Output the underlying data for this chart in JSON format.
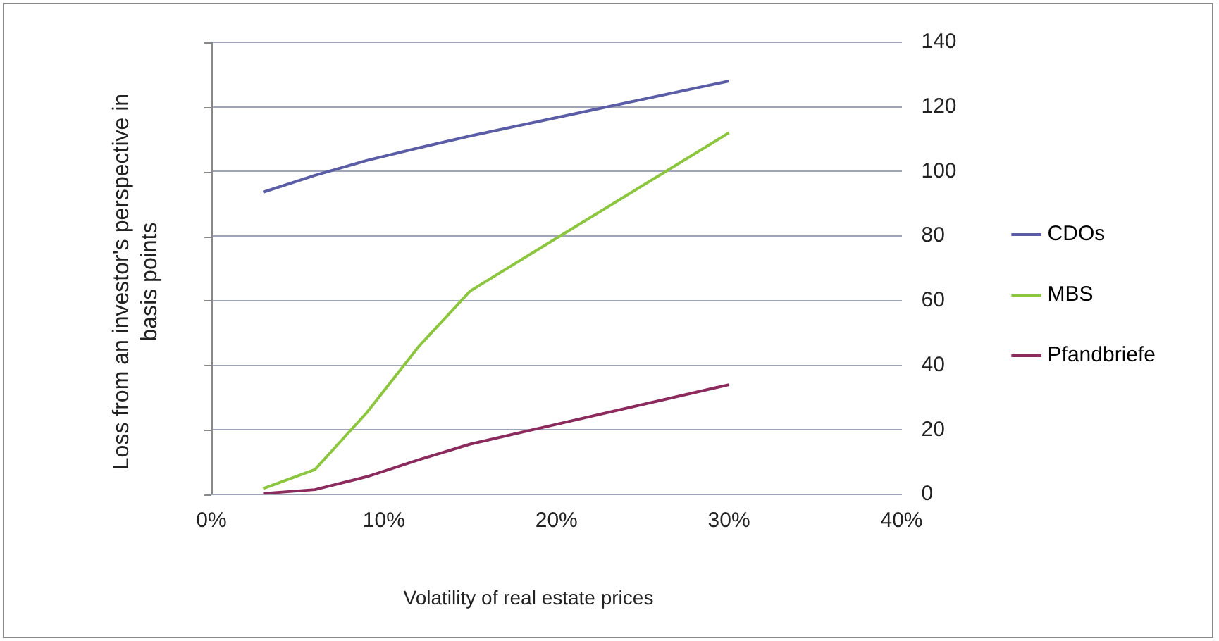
{
  "chart_data": {
    "type": "line",
    "xlabel": "Volatility of real estate prices",
    "ylabel": "Loss from an investor's perspective in basis points",
    "x": [
      3,
      6,
      9,
      12,
      15,
      30
    ],
    "series": [
      {
        "name": "CDOs",
        "color": "#5a5da6",
        "values": [
          93.6,
          98.8,
          103.4,
          107.3,
          111,
          128
        ]
      },
      {
        "name": "MBS",
        "color": "#8cc63f",
        "values": [
          1.8,
          7.7,
          25.3,
          45.7,
          63,
          112
        ]
      },
      {
        "name": "Pfandbriefe",
        "color": "#8b2a5c",
        "values": [
          0.3,
          1.5,
          5.5,
          10.7,
          15.6,
          34
        ]
      }
    ],
    "xlim": [
      0,
      40
    ],
    "xticks": [
      {
        "value": 0,
        "label": "0%"
      },
      {
        "value": 10,
        "label": "10%"
      },
      {
        "value": 20,
        "label": "20%"
      },
      {
        "value": 30,
        "label": "30%"
      },
      {
        "value": 40,
        "label": "40%"
      }
    ],
    "ylim": [
      0,
      140
    ],
    "yticks": [
      0,
      20,
      40,
      60,
      80,
      100,
      120,
      140
    ],
    "grid": "y",
    "legend": "right",
    "marker": "none",
    "line_style": "solid"
  }
}
